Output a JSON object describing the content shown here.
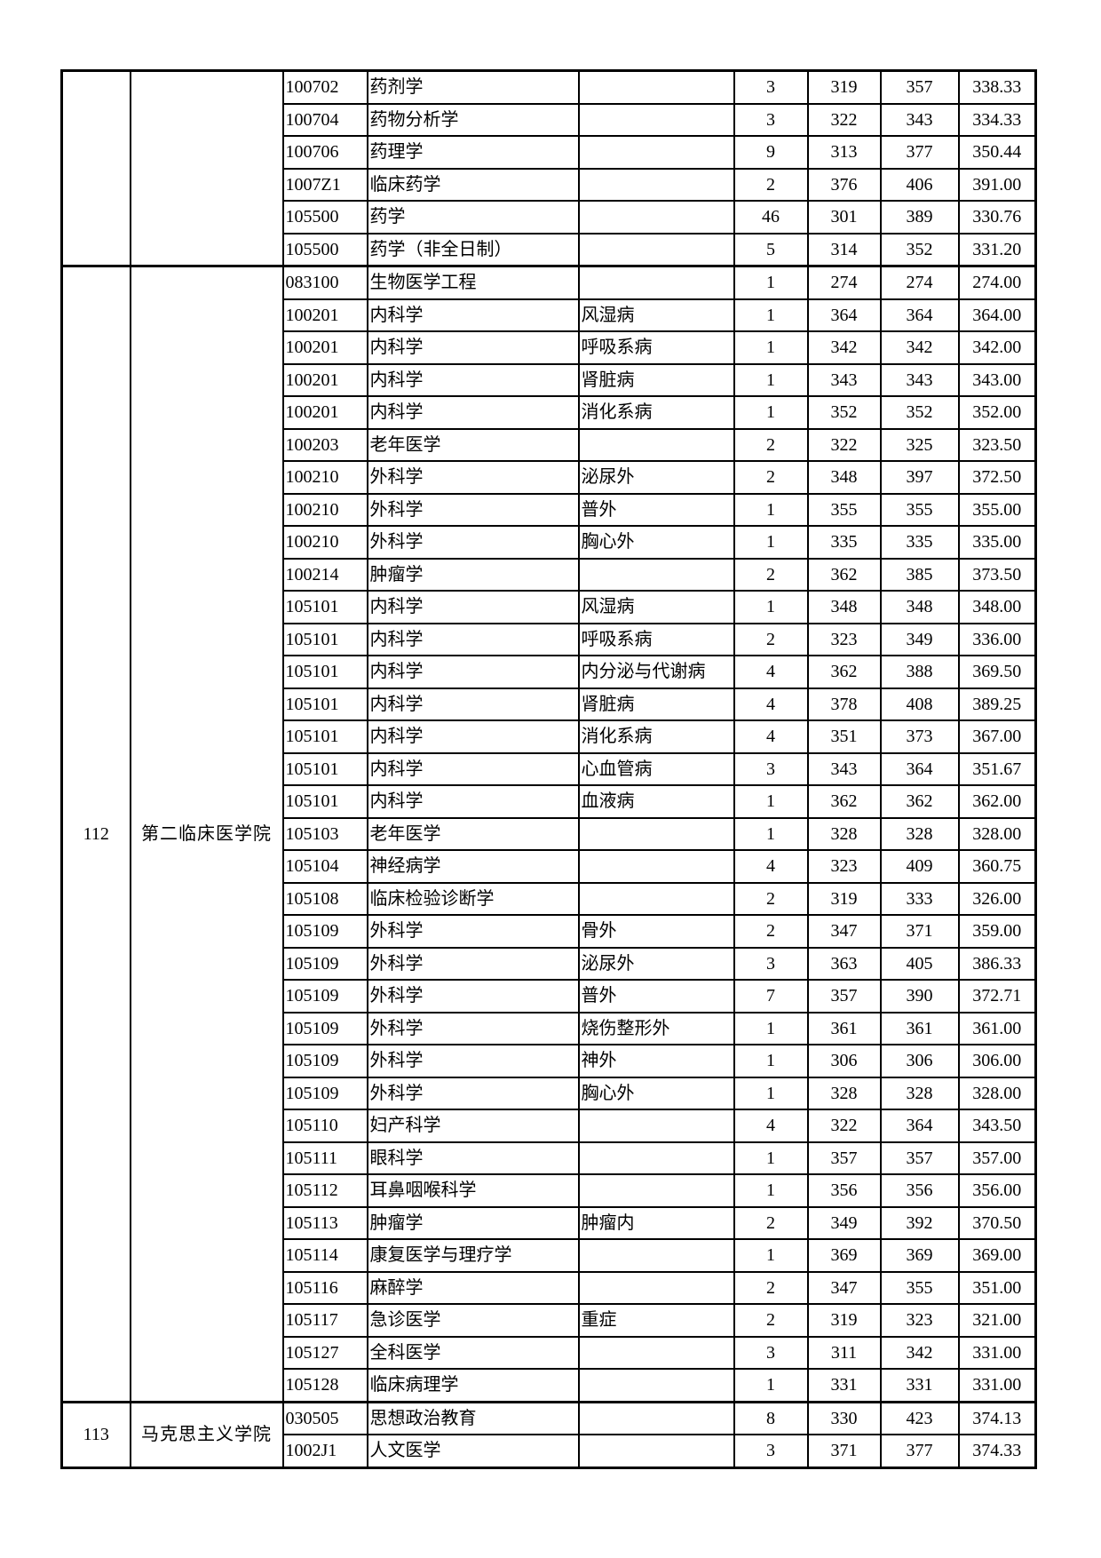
{
  "page": {
    "background_color": "#ffffff",
    "text_color": "#000000"
  },
  "table": {
    "row_count": 43,
    "sections": [
      {
        "seq": "",
        "college": "",
        "rows": [
          [
            "100702",
            "药剂学",
            "",
            "3",
            "319",
            "357",
            "338.33"
          ],
          [
            "100704",
            "药物分析学",
            "",
            "3",
            "322",
            "343",
            "334.33"
          ],
          [
            "100706",
            "药理学",
            "",
            "9",
            "313",
            "377",
            "350.44"
          ],
          [
            "1007Z1",
            "临床药学",
            "",
            "2",
            "376",
            "406",
            "391.00"
          ],
          [
            "105500",
            "药学",
            "",
            "46",
            "301",
            "389",
            "330.76"
          ],
          [
            "105500",
            "药学（非全日制）",
            "",
            "5",
            "314",
            "352",
            "331.20"
          ]
        ]
      },
      {
        "seq": "112",
        "college": "第二临床医学院",
        "rows": [
          [
            "083100",
            "生物医学工程",
            "",
            "1",
            "274",
            "274",
            "274.00"
          ],
          [
            "100201",
            "内科学",
            "风湿病",
            "1",
            "364",
            "364",
            "364.00"
          ],
          [
            "100201",
            "内科学",
            "呼吸系病",
            "1",
            "342",
            "342",
            "342.00"
          ],
          [
            "100201",
            "内科学",
            "肾脏病",
            "1",
            "343",
            "343",
            "343.00"
          ],
          [
            "100201",
            "内科学",
            "消化系病",
            "1",
            "352",
            "352",
            "352.00"
          ],
          [
            "100203",
            "老年医学",
            "",
            "2",
            "322",
            "325",
            "323.50"
          ],
          [
            "100210",
            "外科学",
            "泌尿外",
            "2",
            "348",
            "397",
            "372.50"
          ],
          [
            "100210",
            "外科学",
            "普外",
            "1",
            "355",
            "355",
            "355.00"
          ],
          [
            "100210",
            "外科学",
            "胸心外",
            "1",
            "335",
            "335",
            "335.00"
          ],
          [
            "100214",
            "肿瘤学",
            "",
            "2",
            "362",
            "385",
            "373.50"
          ],
          [
            "105101",
            "内科学",
            "风湿病",
            "1",
            "348",
            "348",
            "348.00"
          ],
          [
            "105101",
            "内科学",
            "呼吸系病",
            "2",
            "323",
            "349",
            "336.00"
          ],
          [
            "105101",
            "内科学",
            "内分泌与代谢病",
            "4",
            "362",
            "388",
            "369.50"
          ],
          [
            "105101",
            "内科学",
            "肾脏病",
            "4",
            "378",
            "408",
            "389.25"
          ],
          [
            "105101",
            "内科学",
            "消化系病",
            "4",
            "351",
            "373",
            "367.00"
          ],
          [
            "105101",
            "内科学",
            "心血管病",
            "3",
            "343",
            "364",
            "351.67"
          ],
          [
            "105101",
            "内科学",
            "血液病",
            "1",
            "362",
            "362",
            "362.00"
          ],
          [
            "105103",
            "老年医学",
            "",
            "1",
            "328",
            "328",
            "328.00"
          ],
          [
            "105104",
            "神经病学",
            "",
            "4",
            "323",
            "409",
            "360.75"
          ],
          [
            "105108",
            "临床检验诊断学",
            "",
            "2",
            "319",
            "333",
            "326.00"
          ],
          [
            "105109",
            "外科学",
            "骨外",
            "2",
            "347",
            "371",
            "359.00"
          ],
          [
            "105109",
            "外科学",
            "泌尿外",
            "3",
            "363",
            "405",
            "386.33"
          ],
          [
            "105109",
            "外科学",
            "普外",
            "7",
            "357",
            "390",
            "372.71"
          ],
          [
            "105109",
            "外科学",
            "烧伤整形外",
            "1",
            "361",
            "361",
            "361.00"
          ],
          [
            "105109",
            "外科学",
            "神外",
            "1",
            "306",
            "306",
            "306.00"
          ],
          [
            "105109",
            "外科学",
            "胸心外",
            "1",
            "328",
            "328",
            "328.00"
          ],
          [
            "105110",
            "妇产科学",
            "",
            "4",
            "322",
            "364",
            "343.50"
          ],
          [
            "105111",
            "眼科学",
            "",
            "1",
            "357",
            "357",
            "357.00"
          ],
          [
            "105112",
            "耳鼻咽喉科学",
            "",
            "1",
            "356",
            "356",
            "356.00"
          ],
          [
            "105113",
            "肿瘤学",
            "肿瘤内",
            "2",
            "349",
            "392",
            "370.50"
          ],
          [
            "105114",
            "康复医学与理疗学",
            "",
            "1",
            "369",
            "369",
            "369.00"
          ],
          [
            "105116",
            "麻醉学",
            "",
            "2",
            "347",
            "355",
            "351.00"
          ],
          [
            "105117",
            "急诊医学",
            "重症",
            "2",
            "319",
            "323",
            "321.00"
          ],
          [
            "105127",
            "全科医学",
            "",
            "3",
            "311",
            "342",
            "331.00"
          ],
          [
            "105128",
            "临床病理学",
            "",
            "1",
            "331",
            "331",
            "331.00"
          ]
        ]
      },
      {
        "seq": "113",
        "college": "马克思主义学院",
        "rows": [
          [
            "030505",
            "思想政治教育",
            "",
            "8",
            "330",
            "423",
            "374.13"
          ],
          [
            "1002J1",
            "人文医学",
            "",
            "3",
            "371",
            "377",
            "374.33"
          ]
        ]
      }
    ]
  }
}
